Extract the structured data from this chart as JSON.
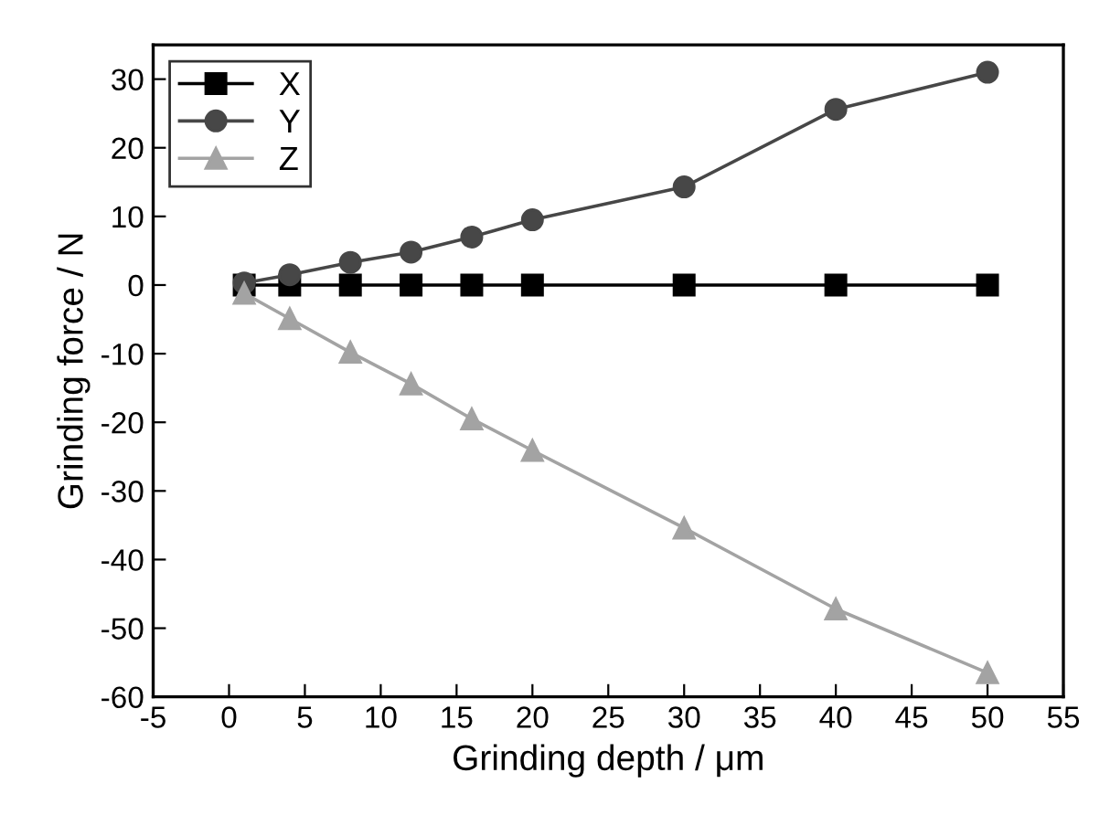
{
  "chart_data": {
    "type": "line",
    "xlabel": "Grinding depth / μm",
    "ylabel": "Grinding force / N",
    "x": [
      1,
      4,
      8,
      12,
      16,
      20,
      30,
      40,
      50
    ],
    "series": [
      {
        "name": "X",
        "color": "#000000",
        "marker": "square",
        "values": [
          0,
          0,
          0,
          0,
          0,
          0,
          0,
          0,
          0
        ]
      },
      {
        "name": "Y",
        "color": "#474747",
        "marker": "circle",
        "values": [
          0.3,
          1.5,
          3.3,
          4.8,
          7.0,
          9.5,
          14.3,
          25.6,
          31.0
        ]
      },
      {
        "name": "Z",
        "color": "#a3a3a3",
        "marker": "triangle",
        "values": [
          -1.2,
          -4.9,
          -9.8,
          -14.4,
          -19.5,
          -24.1,
          -35.4,
          -47.2,
          -56.5
        ]
      }
    ],
    "xlim": [
      -5,
      55
    ],
    "xticks": [
      -5,
      0,
      5,
      10,
      15,
      20,
      25,
      30,
      35,
      40,
      45,
      50,
      55
    ],
    "ylim": [
      -60,
      35
    ],
    "yticks": [
      -60,
      -50,
      -40,
      -30,
      -20,
      -10,
      0,
      10,
      20,
      30
    ],
    "grid": false,
    "legend": "top left",
    "line_style": "solid"
  }
}
